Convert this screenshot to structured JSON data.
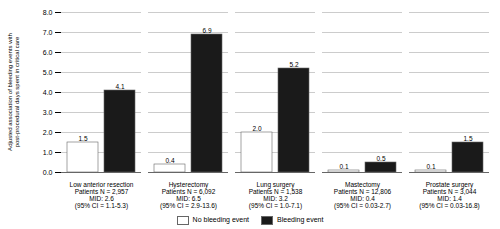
{
  "chart_data": {
    "type": "bar",
    "categories": [
      "Low anterior resection\nPatients N = 2,957\nMID: 2.6\n(95% CI = 1.1-5.3)",
      "Hysterectomy\nPatients N = 6,092\nMID: 6.5\n(95% CI = 2.9-13.6)",
      "Lung surgery\nPatients N = 1,538\nMID: 3.2\n(95% CI = 1.0-7.1)",
      "Mastectomy\nPatients N = 12,806\nMID: 0.4\n(95% CI = 0.03-2.7)",
      "Prostate surgery\nPatients N = 3,044\nMID: 1.4\n(95% CI = 0.03-16.8)"
    ],
    "series": [
      {
        "name": "No bleeding event",
        "color": "#ffffff",
        "values": [
          1.5,
          0.4,
          2.0,
          0.1,
          0.1
        ],
        "value_labels": [
          "1.5",
          "0.4",
          "2.0",
          "0.1",
          "0.1"
        ]
      },
      {
        "name": "Bleeding event",
        "color": "#1a1a1a",
        "values": [
          4.1,
          6.9,
          5.2,
          0.5,
          1.5
        ],
        "value_labels": [
          "4.1",
          "6.9",
          "5.2",
          "0.5",
          "1.5"
        ]
      }
    ],
    "ylabel": "Adjusted association of bleeding events with\npost-procedural days spent in critical care",
    "ylim": [
      0,
      8.0
    ],
    "yticks": [
      {
        "value": 0,
        "label": "0.0"
      },
      {
        "value": 1,
        "label": "1.0"
      },
      {
        "value": 2,
        "label": "2.0"
      },
      {
        "value": 3,
        "label": "3.0"
      },
      {
        "value": 4,
        "label": "4.0"
      },
      {
        "value": 5,
        "label": "5.0"
      },
      {
        "value": 6,
        "label": "6.0"
      },
      {
        "value": 7,
        "label": "7.0"
      },
      {
        "value": 8,
        "label": "8.0"
      }
    ],
    "grid": true,
    "data_labels": true,
    "legend": "bottom"
  }
}
